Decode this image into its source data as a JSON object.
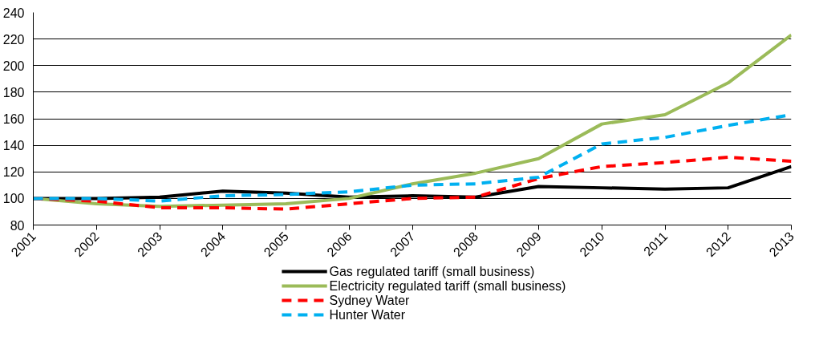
{
  "chart_data": {
    "type": "line",
    "x": [
      2001,
      2002,
      2003,
      2004,
      2005,
      2006,
      2007,
      2008,
      2009,
      2010,
      2011,
      2012,
      2013
    ],
    "series": [
      {
        "name": "Gas regulated tariff (small business)",
        "color": "#000000",
        "line_style": "solid",
        "values": [
          100,
          100,
          101,
          105.5,
          104,
          101,
          102,
          101,
          109,
          108,
          107,
          108,
          124
        ]
      },
      {
        "name": "Electricity regulated tariff (small business)",
        "color": "#9bbb59",
        "line_style": "solid",
        "values": [
          100,
          96,
          94,
          95,
          96,
          100,
          111,
          119,
          130,
          156,
          163,
          187,
          223
        ]
      },
      {
        "name": "Sydney Water",
        "color": "#ff0000",
        "line_style": "dashed",
        "values": [
          100,
          98,
          93,
          93,
          92,
          96,
          100,
          101,
          115,
          124,
          127,
          131,
          128
        ]
      },
      {
        "name": "Hunter Water",
        "color": "#00b0f0",
        "line_style": "dashed",
        "values": [
          100,
          100,
          98,
          102,
          103,
          105,
          110,
          111,
          116,
          141,
          146,
          155,
          163
        ]
      }
    ],
    "xlim": [
      2001,
      2013
    ],
    "xticks": [
      2001,
      2002,
      2003,
      2004,
      2005,
      2006,
      2007,
      2008,
      2009,
      2010,
      2011,
      2012,
      2013
    ],
    "ylim": [
      80,
      240
    ],
    "yticks": [
      80,
      100,
      120,
      140,
      160,
      180,
      200,
      220,
      240
    ],
    "grid": "y",
    "legend": "bottom",
    "marker": "none"
  }
}
